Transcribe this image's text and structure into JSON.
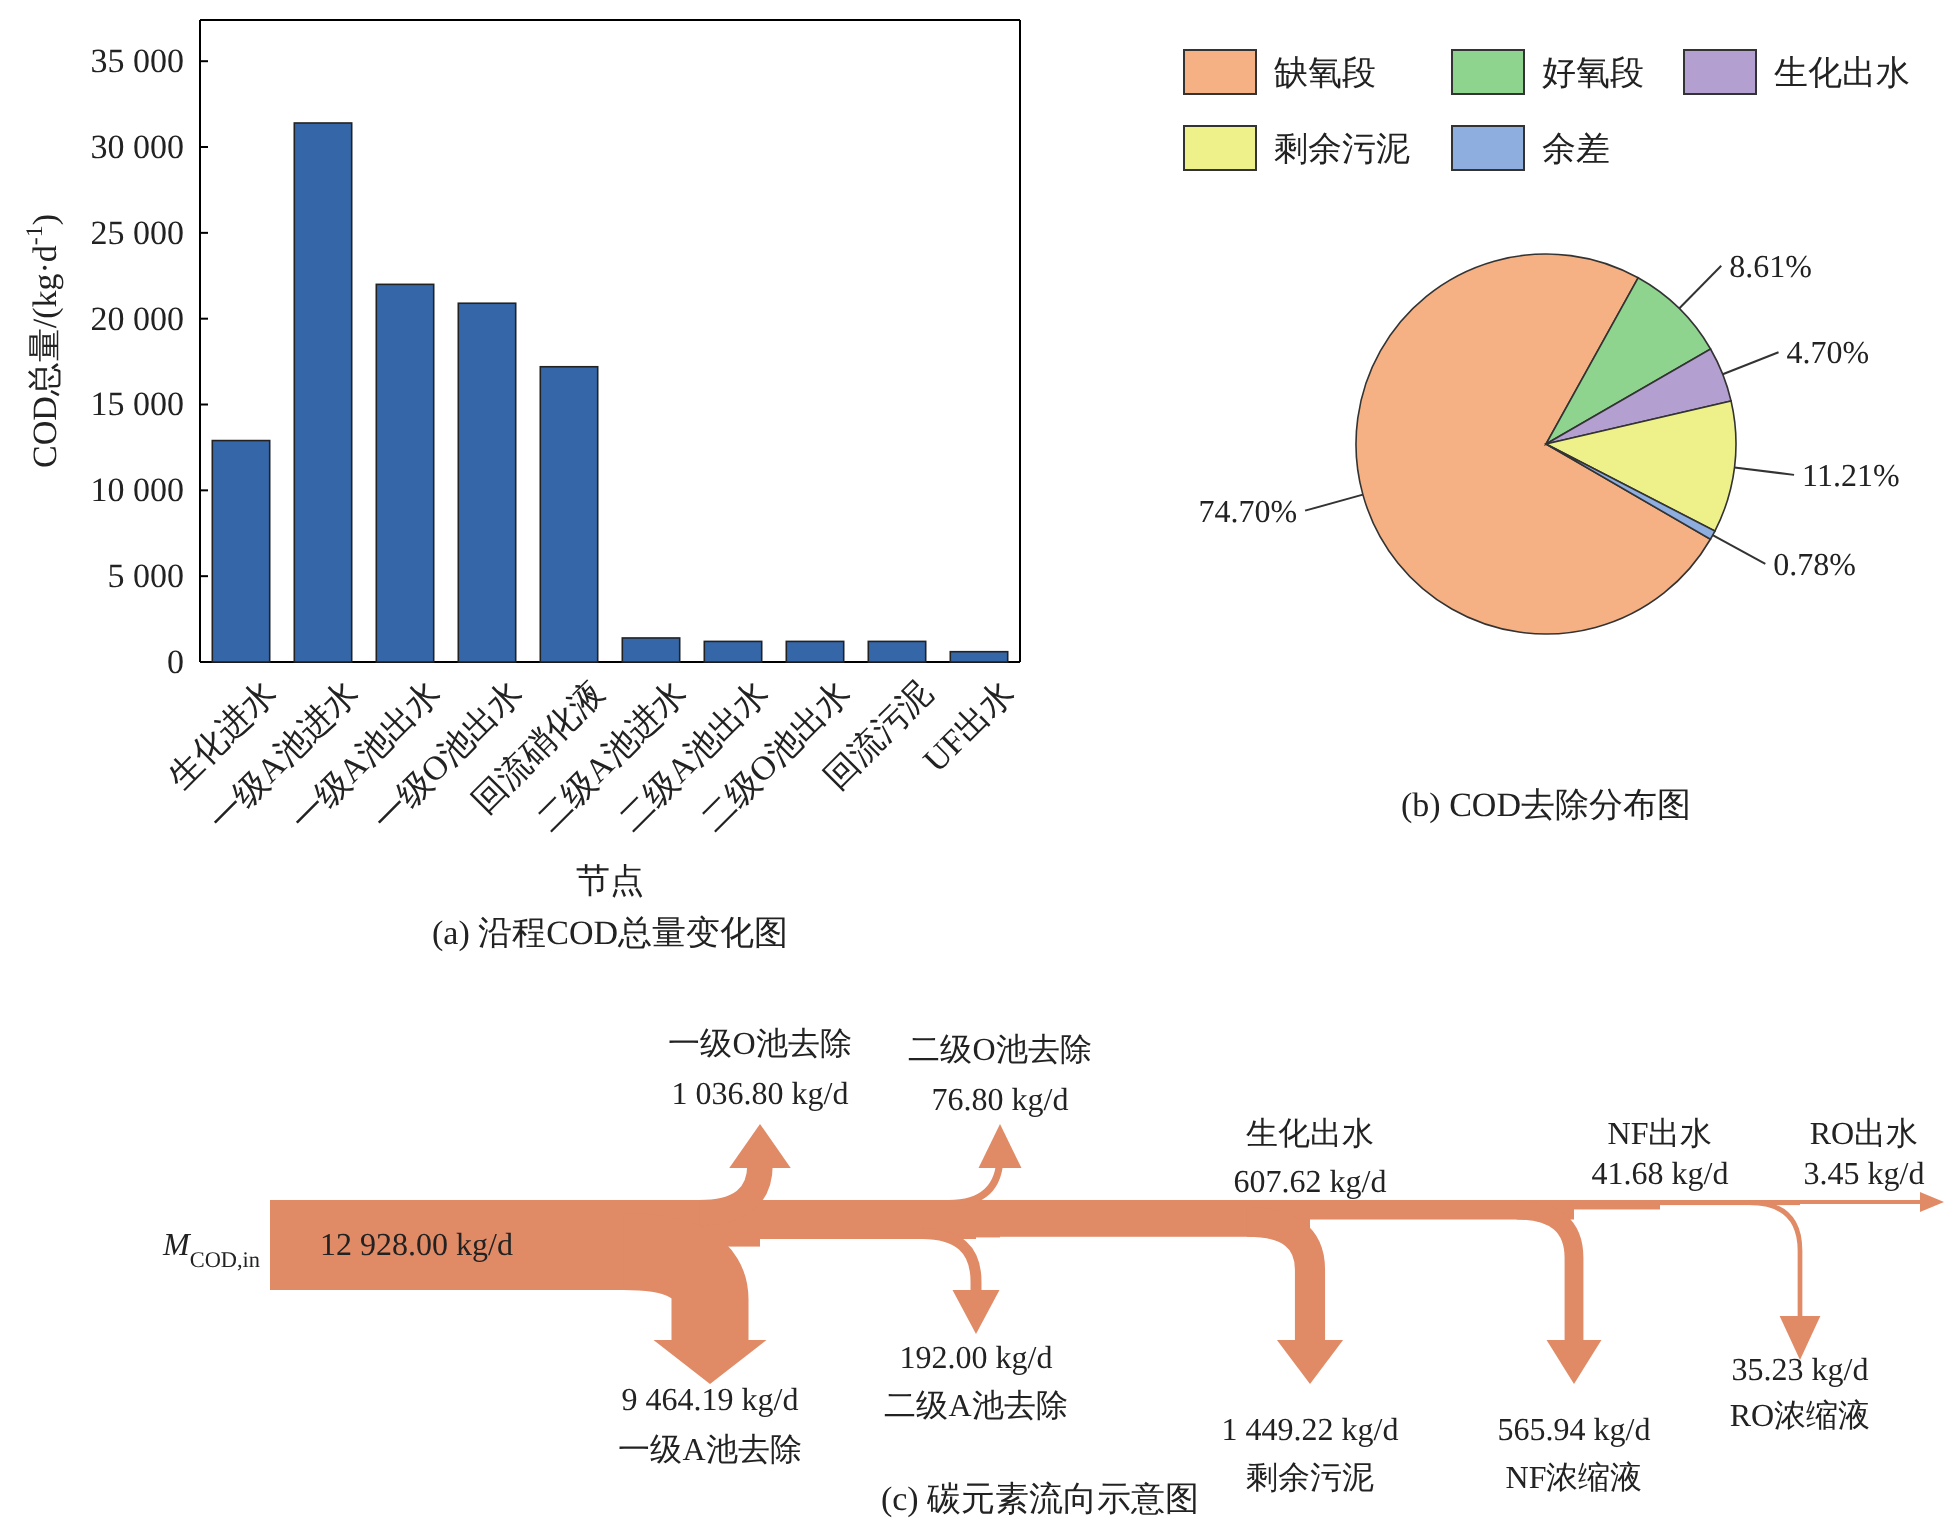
{
  "chart_data": [
    {
      "type": "bar",
      "title": "(a) 沿程COD总量变化图",
      "xlabel": "节点",
      "ylabel": "COD总量/(kg·d$^{-1}$)",
      "categories": [
        "生化进水",
        "一级A池进水",
        "一级A池出水",
        "一级O池出水",
        "回流硝化液",
        "二级A池进水",
        "二级A池出水",
        "二级O池出水",
        "回流污泥",
        "UF出水"
      ],
      "values": [
        12900,
        31400,
        22000,
        20900,
        17200,
        1400,
        1200,
        1200,
        1200,
        600
      ],
      "color": "#3566a8",
      "ylim": [
        0,
        37400
      ],
      "yticks": [
        {
          "value": 0,
          "label": "0"
        },
        {
          "value": 5000,
          "label": "5 000"
        },
        {
          "value": 10000,
          "label": "10 000"
        },
        {
          "value": 15000,
          "label": "15 000"
        },
        {
          "value": 20000,
          "label": "20 000"
        },
        {
          "value": 25000,
          "label": "25 000"
        },
        {
          "value": 30000,
          "label": "30 000"
        },
        {
          "value": 35000,
          "label": "35 000"
        }
      ],
      "grid": false
    },
    {
      "type": "pie",
      "title": "(b) COD去除分布图",
      "categories": [
        "缺氧段",
        "好氧段",
        "生化出水",
        "剩余污泥",
        "余差"
      ],
      "values": [
        74.7,
        8.61,
        4.7,
        11.21,
        0.78
      ],
      "colors": [
        "#f5b183",
        "#8ed48e",
        "#b39fd0",
        "#eef08a",
        "#8eaee0"
      ],
      "value_labels": [
        "74.70%",
        "8.61%",
        "4.70%",
        "11.21%",
        "0.78%"
      ],
      "legend": "top"
    },
    {
      "type": "other",
      "title": "(c) 碳元素流向示意图",
      "categories": [
        "M$_{COD,in}$",
        "一级A池去除",
        "一级O池去除",
        "二级A池去除",
        "二级O池去除",
        "剩余污泥",
        "生化出水",
        "NF浓缩液",
        "NF出水",
        "RO浓缩液",
        "RO出水"
      ],
      "values": [
        12928.0,
        9464.19,
        1036.8,
        192.0,
        76.8,
        1449.22,
        607.62,
        565.94,
        41.68,
        35.23,
        3.45
      ],
      "value_labels": [
        "12 928.00 kg/d",
        "9 464.19 kg/d",
        "1 036.80 kg/d",
        "192.00 kg/d",
        "76.80 kg/d",
        "1 449.22 kg/d",
        "607.62 kg/d",
        "565.94 kg/d",
        "41.68 kg/d",
        "35.23 kg/d",
        "3.45 kg/d"
      ],
      "color": "#e08a66"
    }
  ]
}
